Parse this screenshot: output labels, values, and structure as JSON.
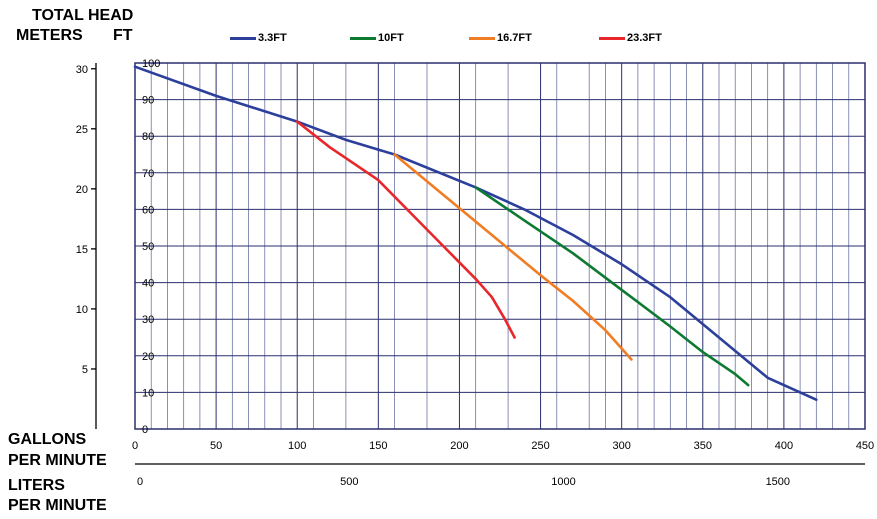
{
  "labels": {
    "head_title": "TOTAL HEAD",
    "meters": "METERS",
    "ft": "FT",
    "gpm1": "GALLONS",
    "gpm2": "PER MINUTE",
    "lpm1": "LITERS",
    "lpm2": "PER MINUTE"
  },
  "chart_data": {
    "type": "line",
    "title": "",
    "xlabel": "GALLONS PER MINUTE",
    "x2label": "LITERS PER MINUTE",
    "ylabel": "FT",
    "y2label": "METERS",
    "xlim": [
      0,
      450
    ],
    "ylim": [
      0,
      100
    ],
    "x_ticks": [
      0,
      50,
      100,
      150,
      200,
      250,
      300,
      350,
      400,
      450
    ],
    "y_ticks": [
      0,
      10,
      20,
      30,
      40,
      50,
      60,
      70,
      80,
      90,
      100
    ],
    "meters_ticks": [
      5,
      10,
      15,
      20,
      25,
      30
    ],
    "liters_ticks": [
      0,
      500,
      1000,
      1500
    ],
    "x_minor_grid": [
      10,
      20,
      30,
      40,
      60,
      70,
      80,
      90,
      110,
      130,
      160,
      180,
      210,
      230,
      260,
      280,
      290,
      310,
      320,
      330,
      340,
      360,
      370,
      380,
      390,
      410,
      420,
      430,
      440
    ],
    "grid": true,
    "legend_position": "top",
    "series": [
      {
        "name": "3.3FT",
        "color": "#2b3f9b",
        "x": [
          0,
          50,
          100,
          130,
          160,
          210,
          240,
          270,
          300,
          330,
          360,
          390,
          420
        ],
        "y": [
          99,
          91,
          84,
          79,
          75,
          66,
          60,
          53,
          45,
          36,
          25,
          14,
          8
        ]
      },
      {
        "name": "10FT",
        "color": "#0d7a32",
        "x": [
          210,
          240,
          270,
          300,
          330,
          350,
          370,
          378
        ],
        "y": [
          66,
          57,
          48,
          38,
          28,
          21,
          15,
          12
        ]
      },
      {
        "name": "16.7FT",
        "color": "#f07d23",
        "x": [
          160,
          190,
          220,
          250,
          270,
          290,
          300,
          306
        ],
        "y": [
          75,
          64,
          53,
          42,
          35,
          27,
          22,
          19
        ]
      },
      {
        "name": "23.3FT",
        "color": "#e8262b",
        "x": [
          100,
          120,
          150,
          170,
          190,
          210,
          220,
          228,
          234
        ],
        "y": [
          84,
          77,
          68,
          59,
          50,
          41,
          36,
          30,
          25
        ]
      }
    ]
  }
}
